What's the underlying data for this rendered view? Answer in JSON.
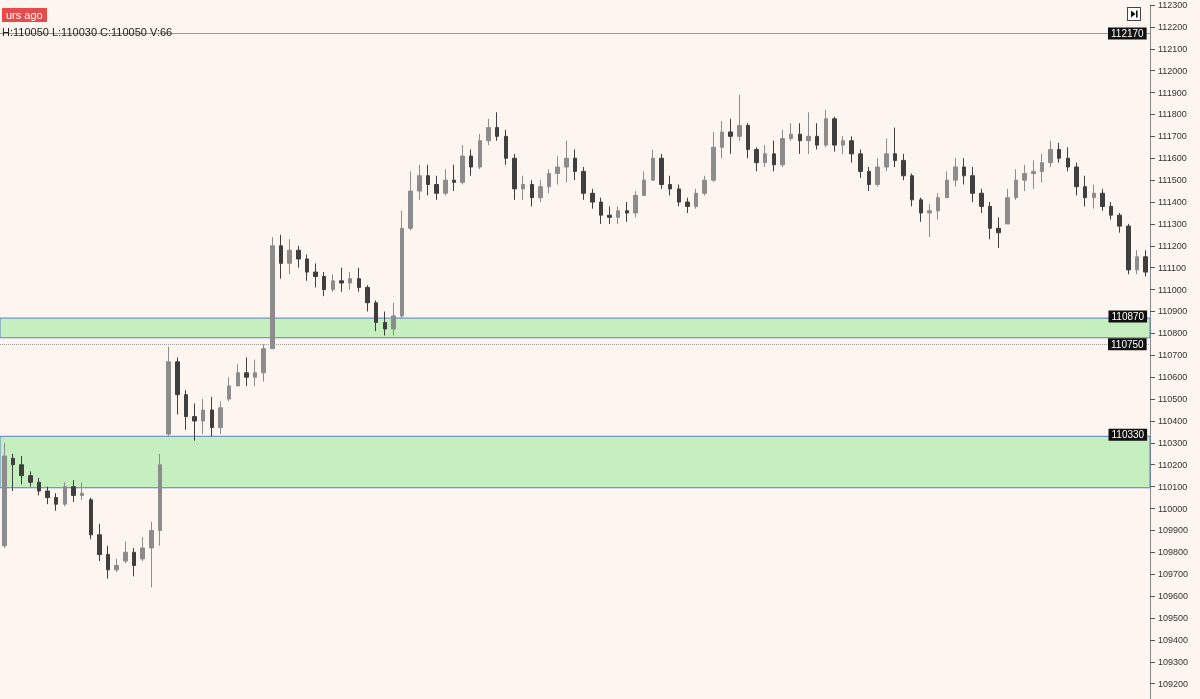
{
  "chart_data": {
    "type": "candlestick",
    "annotations": [
      "urs ago",
      "H:110050 L:110030 C:110050 V:66"
    ],
    "categories": [
      null,
      null,
      null,
      null,
      null,
      null,
      null,
      null,
      null,
      null,
      null,
      null,
      null,
      null,
      null,
      null,
      null,
      null,
      null,
      null,
      null,
      null,
      null,
      null,
      null,
      null,
      null,
      null,
      null,
      null,
      null,
      null,
      null,
      null,
      null,
      null,
      null,
      null,
      null,
      null,
      null,
      null,
      null,
      null,
      null,
      null,
      null,
      null,
      null,
      null,
      null,
      null,
      null,
      null,
      null,
      null,
      null,
      null,
      null,
      null,
      null,
      null,
      null,
      null,
      null,
      null,
      null,
      null,
      null,
      null,
      null,
      null,
      null,
      null,
      null,
      null,
      null,
      null,
      null,
      null,
      null,
      null,
      null,
      null,
      null,
      null,
      null,
      null,
      null,
      null,
      null,
      null,
      null,
      null,
      null,
      null,
      null,
      null,
      null,
      null,
      null,
      null,
      null,
      null,
      null,
      null,
      null,
      null,
      null,
      null,
      null,
      null,
      null,
      null,
      null,
      null,
      null,
      null,
      null,
      null,
      null,
      null,
      null,
      null,
      null,
      null,
      null,
      null,
      null,
      null,
      null,
      null,
      null
    ],
    "colors": [
      "#8c8c8c",
      "#3f3f3f",
      "#3f3f3f",
      "#3f3f3f",
      "#3f3f3f",
      "#3f3f3f",
      "#3f3f3f",
      "#8c8c8c",
      "#3f3f3f",
      "#8c8c8c",
      "#3f3f3f",
      "#3f3f3f",
      "#3f3f3f",
      "#8c8c8c",
      "#8c8c8c",
      "#3f3f3f",
      "#8c8c8c",
      "#8c8c8c",
      "#8c8c8c",
      "#8c8c8c",
      "#3f3f3f",
      "#3f3f3f",
      "#3f3f3f",
      "#8c8c8c",
      "#3f3f3f",
      "#8c8c8c",
      "#8c8c8c",
      "#8c8c8c",
      "#3f3f3f",
      "#8c8c8c",
      "#8c8c8c",
      "#8c8c8c",
      "#3f3f3f",
      "#8c8c8c",
      "#3f3f3f",
      "#3f3f3f",
      "#3f3f3f",
      "#3f3f3f",
      "#8c8c8c",
      "#3f3f3f",
      "#8c8c8c",
      "#3f3f3f",
      "#3f3f3f",
      "#3f3f3f",
      "#3f3f3f",
      "#8c8c8c",
      "#8c8c8c",
      "#8c8c8c",
      "#8c8c8c",
      "#3f3f3f",
      "#3f3f3f",
      "#8c8c8c",
      "#3f3f3f",
      "#8c8c8c",
      "#3f3f3f",
      "#8c8c8c",
      "#8c8c8c",
      "#3f3f3f",
      "#3f3f3f",
      "#3f3f3f",
      "#8c8c8c",
      "#3f3f3f",
      "#8c8c8c",
      "#8c8c8c",
      "#8c8c8c",
      "#8c8c8c",
      "#3f3f3f",
      "#3f3f3f",
      "#3f3f3f",
      "#3f3f3f",
      "#3f3f3f",
      "#8c8c8c",
      "#3f3f3f",
      "#8c8c8c",
      "#8c8c8c",
      "#8c8c8c",
      "#3f3f3f",
      "#3f3f3f",
      "#3f3f3f",
      "#3f3f3f",
      "#8c8c8c",
      "#8c8c8c",
      "#8c8c8c",
      "#8c8c8c",
      "#3f3f3f",
      "#8c8c8c",
      "#3f3f3f",
      "#3f3f3f",
      "#8c8c8c",
      "#3f3f3f",
      "#8c8c8c",
      "#8c8c8c",
      "#3f3f3f",
      "#8c8c8c",
      "#3f3f3f",
      "#8c8c8c",
      "#3f3f3f",
      "#8c8c8c",
      "#3f3f3f",
      "#3f3f3f",
      "#3f3f3f",
      "#8c8c8c",
      "#8c8c8c",
      "#3f3f3f",
      "#3f3f3f",
      "#3f3f3f",
      "#3f3f3f",
      "#8c8c8c",
      "#8c8c8c",
      "#8c8c8c",
      "#8c8c8c",
      "#3f3f3f",
      "#3f3f3f",
      "#3f3f3f",
      "#3f3f3f",
      "#3f3f3f",
      "#8c8c8c",
      "#8c8c8c",
      "#8c8c8c",
      "#8c8c8c",
      "#8c8c8c",
      "#8c8c8c",
      "#3f3f3f",
      "#3f3f3f",
      "#3f3f3f",
      "#3f3f3f",
      "#8c8c8c",
      "#3f3f3f",
      "#3f3f3f",
      "#3f3f3f",
      "#3f3f3f",
      "#8c8c8c",
      "#3f3f3f"
    ],
    "ohlc": [
      [
        109830,
        110300,
        109820,
        110240
      ],
      [
        110230,
        110250,
        110080,
        110200
      ],
      [
        110200,
        110240,
        110110,
        110150
      ],
      [
        110150,
        110170,
        110100,
        110120
      ],
      [
        110120,
        110140,
        110060,
        110080
      ],
      [
        110080,
        110100,
        110020,
        110050
      ],
      [
        110050,
        110070,
        109990,
        110020
      ],
      [
        110020,
        110120,
        110010,
        110100
      ],
      [
        110100,
        110130,
        110030,
        110060
      ],
      [
        110060,
        110120,
        110040,
        110070
      ],
      [
        110040,
        110050,
        109860,
        109880
      ],
      [
        109880,
        109930,
        109760,
        109790
      ],
      [
        109790,
        109830,
        109680,
        109720
      ],
      [
        109720,
        109770,
        109710,
        109740
      ],
      [
        109760,
        109850,
        109750,
        109800
      ],
      [
        109800,
        109820,
        109690,
        109740
      ],
      [
        109770,
        109870,
        109760,
        109820
      ],
      [
        109820,
        109940,
        109640,
        109900
      ],
      [
        109900,
        110250,
        109830,
        110200
      ],
      [
        110340,
        110740,
        110330,
        110670
      ],
      [
        110670,
        110690,
        110430,
        110520
      ],
      [
        110520,
        110540,
        110360,
        110420
      ],
      [
        110420,
        110480,
        110310,
        110400
      ],
      [
        110400,
        110500,
        110340,
        110450
      ],
      [
        110450,
        110510,
        110330,
        110370
      ],
      [
        110370,
        110490,
        110340,
        110460
      ],
      [
        110500,
        110600,
        110490,
        110560
      ],
      [
        110560,
        110660,
        110560,
        110620
      ],
      [
        110620,
        110690,
        110560,
        110600
      ],
      [
        110600,
        110680,
        110560,
        110620
      ],
      [
        110620,
        110750,
        110580,
        110730
      ],
      [
        110730,
        111240,
        110730,
        111200
      ],
      [
        111200,
        111250,
        111050,
        111120
      ],
      [
        111120,
        111230,
        111070,
        111180
      ],
      [
        111180,
        111200,
        111100,
        111140
      ],
      [
        111140,
        111160,
        111040,
        111080
      ],
      [
        111080,
        111120,
        111010,
        111060
      ],
      [
        111060,
        111080,
        110970,
        111000
      ],
      [
        111000,
        111070,
        110990,
        111040
      ],
      [
        111040,
        111100,
        110990,
        111030
      ],
      [
        111030,
        111080,
        111000,
        111050
      ],
      [
        111050,
        111100,
        110990,
        111010
      ],
      [
        111010,
        111020,
        110900,
        110940
      ],
      [
        110940,
        110950,
        110810,
        110850
      ],
      [
        110850,
        110900,
        110790,
        110820
      ],
      [
        110820,
        110940,
        110790,
        110880
      ],
      [
        110880,
        111360,
        110870,
        111280
      ],
      [
        111280,
        111540,
        111270,
        111450
      ],
      [
        111450,
        111570,
        111410,
        111520
      ],
      [
        111520,
        111570,
        111430,
        111480
      ],
      [
        111480,
        111520,
        111410,
        111440
      ],
      [
        111440,
        111550,
        111430,
        111500
      ],
      [
        111500,
        111570,
        111450,
        111490
      ],
      [
        111490,
        111660,
        111480,
        111610
      ],
      [
        111610,
        111640,
        111520,
        111560
      ],
      [
        111560,
        111710,
        111550,
        111680
      ],
      [
        111680,
        111780,
        111660,
        111740
      ],
      [
        111740,
        111810,
        111680,
        111700
      ],
      [
        111700,
        111730,
        111570,
        111600
      ],
      [
        111600,
        111620,
        111410,
        111460
      ],
      [
        111460,
        111520,
        111410,
        111480
      ],
      [
        111480,
        111500,
        111380,
        111420
      ],
      [
        111420,
        111500,
        111400,
        111470
      ],
      [
        111470,
        111550,
        111440,
        111530
      ],
      [
        111530,
        111610,
        111480,
        111560
      ],
      [
        111560,
        111680,
        111490,
        111600
      ],
      [
        111600,
        111640,
        111500,
        111540
      ],
      [
        111540,
        111560,
        111410,
        111440
      ],
      [
        111440,
        111460,
        111370,
        111400
      ],
      [
        111400,
        111420,
        111300,
        111340
      ],
      [
        111340,
        111380,
        111300,
        111330
      ],
      [
        111330,
        111380,
        111300,
        111360
      ],
      [
        111360,
        111400,
        111310,
        111350
      ],
      [
        111350,
        111450,
        111330,
        111430
      ],
      [
        111430,
        111540,
        111430,
        111500
      ],
      [
        111500,
        111640,
        111500,
        111600
      ],
      [
        111600,
        111620,
        111460,
        111480
      ],
      [
        111480,
        111520,
        111430,
        111460
      ],
      [
        111460,
        111480,
        111380,
        111400
      ],
      [
        111400,
        111420,
        111350,
        111380
      ],
      [
        111380,
        111460,
        111370,
        111440
      ],
      [
        111440,
        111520,
        111430,
        111500
      ],
      [
        111500,
        111720,
        111490,
        111650
      ],
      [
        111650,
        111770,
        111600,
        111720
      ],
      [
        111720,
        111780,
        111620,
        111700
      ],
      [
        111700,
        111890,
        111680,
        111750
      ],
      [
        111750,
        111760,
        111600,
        111640
      ],
      [
        111640,
        111650,
        111540,
        111580
      ],
      [
        111580,
        111660,
        111560,
        111620
      ],
      [
        111620,
        111680,
        111540,
        111570
      ],
      [
        111570,
        111730,
        111560,
        111690
      ],
      [
        111690,
        111760,
        111680,
        111710
      ],
      [
        111710,
        111760,
        111620,
        111680
      ],
      [
        111680,
        111810,
        111620,
        111700
      ],
      [
        111700,
        111760,
        111640,
        111660
      ],
      [
        111660,
        111820,
        111650,
        111780
      ],
      [
        111780,
        111790,
        111630,
        111660
      ],
      [
        111660,
        111700,
        111620,
        111680
      ],
      [
        111680,
        111700,
        111580,
        111620
      ],
      [
        111620,
        111640,
        111510,
        111540
      ],
      [
        111540,
        111560,
        111450,
        111480
      ],
      [
        111480,
        111600,
        111470,
        111560
      ],
      [
        111560,
        111690,
        111540,
        111620
      ],
      [
        111620,
        111740,
        111560,
        111590
      ],
      [
        111590,
        111620,
        111500,
        111520
      ],
      [
        111520,
        111530,
        111380,
        111410
      ],
      [
        111410,
        111420,
        111310,
        111350
      ],
      [
        111350,
        111390,
        111240,
        111360
      ],
      [
        111360,
        111440,
        111320,
        111420
      ],
      [
        111420,
        111540,
        111420,
        111500
      ],
      [
        111500,
        111600,
        111470,
        111560
      ],
      [
        111560,
        111600,
        111480,
        111520
      ],
      [
        111520,
        111560,
        111400,
        111440
      ],
      [
        111440,
        111460,
        111350,
        111380
      ],
      [
        111380,
        111400,
        111230,
        111280
      ],
      [
        111280,
        111330,
        111190,
        111260
      ],
      [
        111300,
        111460,
        111300,
        111420
      ],
      [
        111420,
        111550,
        111410,
        111500
      ],
      [
        111500,
        111570,
        111450,
        111530
      ],
      [
        111530,
        111590,
        111460,
        111540
      ],
      [
        111540,
        111620,
        111490,
        111580
      ],
      [
        111580,
        111680,
        111560,
        111640
      ],
      [
        111640,
        111670,
        111580,
        111600
      ],
      [
        111600,
        111650,
        111540,
        111560
      ],
      [
        111560,
        111580,
        111430,
        111470
      ],
      [
        111470,
        111520,
        111380,
        111420
      ],
      [
        111420,
        111480,
        111370,
        111440
      ],
      [
        111440,
        111460,
        111360,
        111380
      ],
      [
        111380,
        111400,
        111320,
        111340
      ],
      [
        111340,
        111350,
        111260,
        111290
      ],
      [
        111290,
        111300,
        111070,
        111090
      ],
      [
        111090,
        111180,
        111070,
        111150
      ],
      [
        111150,
        111180,
        111060,
        111080
      ]
    ],
    "ylim": [
      109130,
      112300
    ],
    "yticks": [
      109200,
      109300,
      109400,
      109500,
      109600,
      109700,
      109800,
      109900,
      110000,
      110100,
      110200,
      110300,
      110400,
      110500,
      110600,
      110700,
      110800,
      110900,
      111000,
      111100,
      111200,
      111300,
      111400,
      111500,
      111600,
      111700,
      111800,
      111900,
      112000,
      112100,
      112200,
      112300
    ],
    "tick_labels": "y",
    "ref_lines": [
      {
        "axis": "y",
        "value": 112170,
        "label": "112170",
        "color": "#9a9a9a",
        "line_style": "solid"
      },
      {
        "axis": "y",
        "value": 110750,
        "label": "110750",
        "color": "#9a9a9a",
        "line_style": "dotted"
      }
    ],
    "bands": [
      {
        "axis": "y",
        "from": 110780,
        "to": 110870,
        "label": "110870",
        "color": "#c6efc0"
      },
      {
        "axis": "y",
        "from": 110095,
        "to": 110330,
        "label": "110330",
        "color": "#c6efc0"
      }
    ],
    "grid": false
  }
}
